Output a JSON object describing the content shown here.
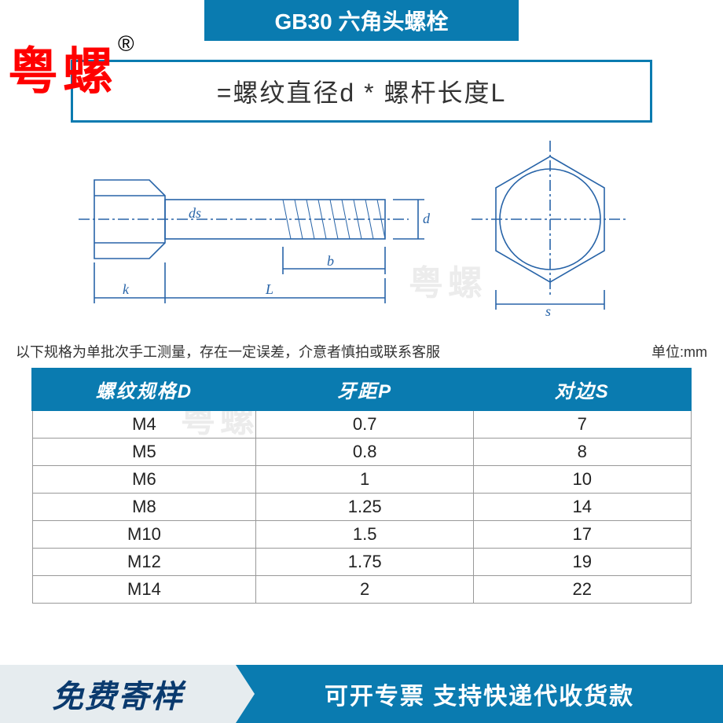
{
  "colors": {
    "primary": "#0a7bb0",
    "logo_red": "#ff0000",
    "footer_grey": "#e6ecef",
    "footer_text": "#0a3a6e",
    "diagram_line": "#2864a8",
    "table_border": "#999999"
  },
  "header": {
    "title": "GB30 六角头螺栓"
  },
  "logo": {
    "text": "粤螺",
    "reg": "®"
  },
  "formula": "=螺纹直径d * 螺杆长度L",
  "diagram": {
    "labels": {
      "ds": "ds",
      "d": "d",
      "b": "b",
      "k": "k",
      "L": "L",
      "s": "s"
    },
    "watermark": "粤螺"
  },
  "notes": {
    "left": "以下规格为单批次手工测量，存在一定误差，介意者慎拍或联系客服",
    "right": "单位:mm"
  },
  "table": {
    "columns": [
      "螺纹规格D",
      "牙距P",
      "对边S"
    ],
    "rows": [
      [
        "M4",
        "0.7",
        "7"
      ],
      [
        "M5",
        "0.8",
        "8"
      ],
      [
        "M6",
        "1",
        "10"
      ],
      [
        "M8",
        "1.25",
        "14"
      ],
      [
        "M10",
        "1.5",
        "17"
      ],
      [
        "M12",
        "1.75",
        "19"
      ],
      [
        "M14",
        "2",
        "22"
      ]
    ],
    "watermark": "粤螺"
  },
  "footer": {
    "left": "免费寄样",
    "right": "可开专票 支持快递代收货款"
  }
}
